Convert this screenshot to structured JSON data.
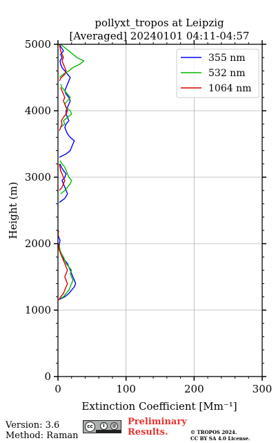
{
  "chart_data": {
    "type": "line",
    "title": "pollyxt_tropos at Leipzig",
    "subtitle": "[Averaged] 20240101 04:11-04:57",
    "xlabel": "Extinction Coefficient [Mm⁻¹]",
    "ylabel": "Height (m)",
    "xlim": [
      0,
      300
    ],
    "ylim": [
      0,
      5000
    ],
    "x_ticks": [
      "0",
      "100",
      "200",
      "300"
    ],
    "y_ticks": [
      "0",
      "1000",
      "2000",
      "3000",
      "4000",
      "5000"
    ],
    "grid": true,
    "legend_position": "top-right",
    "series": [
      {
        "name": "355 nm",
        "color": "#0000ff",
        "points": [
          [
            2,
            1160
          ],
          [
            10,
            1200
          ],
          [
            16,
            1250
          ],
          [
            20,
            1300
          ],
          [
            24,
            1350
          ],
          [
            26,
            1400
          ],
          [
            24,
            1450
          ],
          [
            22,
            1500
          ],
          [
            20,
            1550
          ],
          [
            18,
            1600
          ],
          [
            16,
            1650
          ],
          [
            14,
            1700
          ],
          [
            10,
            1750
          ],
          [
            6,
            1800
          ],
          [
            4,
            1850
          ],
          [
            3,
            1900
          ],
          [
            2,
            1950
          ],
          [
            2,
            2000
          ],
          [
            3,
            2050
          ],
          [
            1,
            2100
          ],
          [
            null,
            2150
          ],
          [
            null,
            2600
          ],
          [
            2,
            2620
          ],
          [
            10,
            2680
          ],
          [
            14,
            2750
          ],
          [
            12,
            2800
          ],
          [
            10,
            2850
          ],
          [
            8,
            2900
          ],
          [
            6,
            2950
          ],
          [
            10,
            3000
          ],
          [
            12,
            3050
          ],
          [
            8,
            3100
          ],
          [
            5,
            3150
          ],
          [
            3,
            3200
          ],
          [
            null,
            3250
          ],
          [
            2,
            3300
          ],
          [
            12,
            3350
          ],
          [
            18,
            3400
          ],
          [
            20,
            3450
          ],
          [
            22,
            3500
          ],
          [
            24,
            3550
          ],
          [
            18,
            3600
          ],
          [
            14,
            3650
          ],
          [
            12,
            3700
          ],
          [
            10,
            3750
          ],
          [
            12,
            3800
          ],
          [
            16,
            3850
          ],
          [
            14,
            3900
          ],
          [
            12,
            3950
          ],
          [
            12,
            4000
          ],
          [
            14,
            4050
          ],
          [
            16,
            4100
          ],
          [
            18,
            4150
          ],
          [
            16,
            4200
          ],
          [
            12,
            4250
          ],
          [
            10,
            4300
          ],
          [
            12,
            4350
          ],
          [
            14,
            4400
          ],
          [
            16,
            4450
          ],
          [
            18,
            4500
          ],
          [
            14,
            4550
          ],
          [
            10,
            4600
          ],
          [
            6,
            4650
          ],
          [
            4,
            4700
          ],
          [
            3,
            4750
          ],
          [
            6,
            4800
          ],
          [
            4,
            4850
          ],
          [
            8,
            4900
          ],
          [
            5,
            4950
          ],
          [
            2,
            5000
          ]
        ]
      },
      {
        "name": "532 nm",
        "color": "#00bb00",
        "points": [
          [
            2,
            1170
          ],
          [
            8,
            1200
          ],
          [
            12,
            1250
          ],
          [
            16,
            1300
          ],
          [
            18,
            1350
          ],
          [
            20,
            1400
          ],
          [
            22,
            1450
          ],
          [
            20,
            1500
          ],
          [
            18,
            1550
          ],
          [
            20,
            1600
          ],
          [
            16,
            1650
          ],
          [
            12,
            1700
          ],
          [
            10,
            1750
          ],
          [
            8,
            1800
          ],
          [
            5,
            1850
          ],
          [
            3,
            1900
          ],
          [
            2,
            1950
          ],
          [
            1,
            2000
          ],
          [
            null,
            2050
          ],
          [
            null,
            2700
          ],
          [
            4,
            2750
          ],
          [
            10,
            2800
          ],
          [
            14,
            2850
          ],
          [
            18,
            2900
          ],
          [
            20,
            2950
          ],
          [
            16,
            3000
          ],
          [
            14,
            3050
          ],
          [
            12,
            3100
          ],
          [
            10,
            3150
          ],
          [
            6,
            3200
          ],
          [
            3,
            3250
          ],
          [
            null,
            3300
          ],
          [
            null,
            3700
          ],
          [
            4,
            3750
          ],
          [
            10,
            3800
          ],
          [
            8,
            3850
          ],
          [
            14,
            3900
          ],
          [
            20,
            3950
          ],
          [
            18,
            4000
          ],
          [
            12,
            4050
          ],
          [
            10,
            4100
          ],
          [
            14,
            4150
          ],
          [
            18,
            4200
          ],
          [
            14,
            4250
          ],
          [
            10,
            4300
          ],
          [
            6,
            4350
          ],
          [
            4,
            4400
          ],
          [
            null,
            4450
          ],
          [
            2,
            4500
          ],
          [
            8,
            4550
          ],
          [
            16,
            4600
          ],
          [
            22,
            4650
          ],
          [
            32,
            4700
          ],
          [
            38,
            4750
          ],
          [
            28,
            4800
          ],
          [
            22,
            4850
          ],
          [
            16,
            4900
          ],
          [
            10,
            4950
          ],
          [
            4,
            5000
          ]
        ]
      },
      {
        "name": "1064 nm",
        "color": "#dd0000",
        "points": [
          [
            1,
            1150
          ],
          [
            4,
            1200
          ],
          [
            8,
            1250
          ],
          [
            10,
            1300
          ],
          [
            12,
            1350
          ],
          [
            14,
            1400
          ],
          [
            12,
            1450
          ],
          [
            10,
            1500
          ],
          [
            12,
            1550
          ],
          [
            14,
            1600
          ],
          [
            12,
            1650
          ],
          [
            10,
            1700
          ],
          [
            8,
            1750
          ],
          [
            6,
            1800
          ],
          [
            4,
            1850
          ],
          [
            2,
            1900
          ],
          [
            1,
            1950
          ],
          [
            1,
            2000
          ],
          [
            null,
            2050
          ],
          [
            1,
            2100
          ],
          [
            0,
            2150
          ],
          [
            1,
            2200
          ],
          [
            null,
            2250
          ],
          [
            null,
            2750
          ],
          [
            2,
            2800
          ],
          [
            6,
            2850
          ],
          [
            8,
            2900
          ],
          [
            10,
            2950
          ],
          [
            8,
            3000
          ],
          [
            6,
            3050
          ],
          [
            4,
            3100
          ],
          [
            3,
            3150
          ],
          [
            2,
            3200
          ],
          [
            null,
            3250
          ],
          [
            null,
            3650
          ],
          [
            2,
            3700
          ],
          [
            4,
            3750
          ],
          [
            6,
            3800
          ],
          [
            5,
            3850
          ],
          [
            8,
            3900
          ],
          [
            12,
            3950
          ],
          [
            14,
            4000
          ],
          [
            12,
            4050
          ],
          [
            10,
            4100
          ],
          [
            8,
            4150
          ],
          [
            10,
            4200
          ],
          [
            8,
            4250
          ],
          [
            6,
            4300
          ],
          [
            4,
            4350
          ],
          [
            null,
            4400
          ],
          [
            2,
            4450
          ],
          [
            5,
            4500
          ],
          [
            10,
            4550
          ],
          [
            12,
            4600
          ],
          [
            10,
            4650
          ],
          [
            8,
            4700
          ],
          [
            6,
            4750
          ],
          [
            8,
            4800
          ],
          [
            6,
            4850
          ],
          [
            4,
            4900
          ],
          [
            3,
            4950
          ],
          [
            2,
            5000
          ]
        ]
      }
    ]
  },
  "footer": {
    "version": "Version: 3.6",
    "method": "Method: Raman",
    "preliminary_line1": "Preliminary",
    "preliminary_line2": "Results.",
    "copyright_line1": "© TROPOS 2024.",
    "copyright_line2": "CC BY SA 4.0 License.",
    "license_icon": "cc-by-sa-icon"
  }
}
